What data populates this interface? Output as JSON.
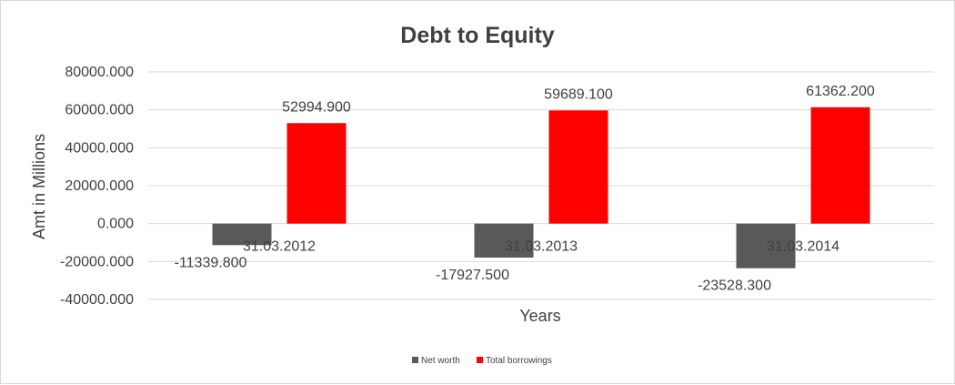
{
  "chart_data": {
    "type": "bar",
    "title": "Debt to Equity",
    "xlabel": "Years",
    "ylabel": "Amt in Millions",
    "categories": [
      "31.03.2012",
      "31.03.2013",
      "31.03.2014"
    ],
    "series": [
      {
        "name": "Net worth",
        "color": "#595959",
        "values": [
          -11339.8,
          -17927.5,
          -23528.3
        ],
        "labels": [
          "-11339.800",
          "-17927.500",
          "-23528.300"
        ]
      },
      {
        "name": "Total borrowings",
        "color": "#ff0000",
        "values": [
          52994.9,
          59689.1,
          61362.2
        ],
        "labels": [
          "52994.900",
          "59689.100",
          "61362.200"
        ]
      }
    ],
    "ylim": [
      -40000,
      80000
    ],
    "yticks": [
      80000,
      60000,
      40000,
      20000,
      0,
      -20000,
      -40000
    ],
    "ytick_labels": [
      "80000.000",
      "60000.000",
      "40000.000",
      "20000.000",
      "0.000",
      "-20000.000",
      "-40000.000"
    ],
    "grid": true,
    "legend_position": "bottom"
  }
}
